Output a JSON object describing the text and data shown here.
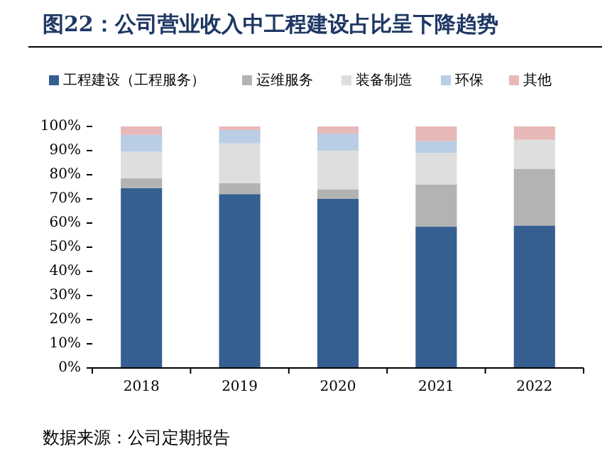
{
  "chart_data": {
    "type": "bar",
    "stacked": true,
    "title": "图22：公司营业收入中工程建设占比呈下降趋势",
    "categories": [
      "2018",
      "2019",
      "2020",
      "2021",
      "2022"
    ],
    "series": [
      {
        "name": "工程建设（工程服务）",
        "color": "#365f91",
        "values": [
          74.5,
          72,
          70,
          58.5,
          59
        ]
      },
      {
        "name": "运维服务",
        "color": "#b3b3b3",
        "values": [
          4,
          4.5,
          4,
          17.5,
          23.5
        ]
      },
      {
        "name": "装备制造",
        "color": "#dedede",
        "values": [
          11,
          16.5,
          16,
          13,
          12
        ]
      },
      {
        "name": "环保",
        "color": "#b9cde5",
        "values": [
          7,
          5.5,
          7,
          5,
          0
        ]
      },
      {
        "name": "其他",
        "color": "#e6b9b8",
        "values": [
          3.5,
          1.5,
          3,
          6,
          5.5
        ]
      }
    ],
    "ylim": [
      0,
      100
    ],
    "yticks": [
      {
        "value": 0,
        "label": "0%"
      },
      {
        "value": 10,
        "label": "10%"
      },
      {
        "value": 20,
        "label": "20%"
      },
      {
        "value": 30,
        "label": "30%"
      },
      {
        "value": 40,
        "label": "40%"
      },
      {
        "value": 50,
        "label": "50%"
      },
      {
        "value": 60,
        "label": "60%"
      },
      {
        "value": 70,
        "label": "70%"
      },
      {
        "value": 80,
        "label": "80%"
      },
      {
        "value": 90,
        "label": "90%"
      },
      {
        "value": 100,
        "label": "100%"
      }
    ],
    "legend": "top",
    "annotations": [
      "数据来源：公司定期报告"
    ]
  }
}
